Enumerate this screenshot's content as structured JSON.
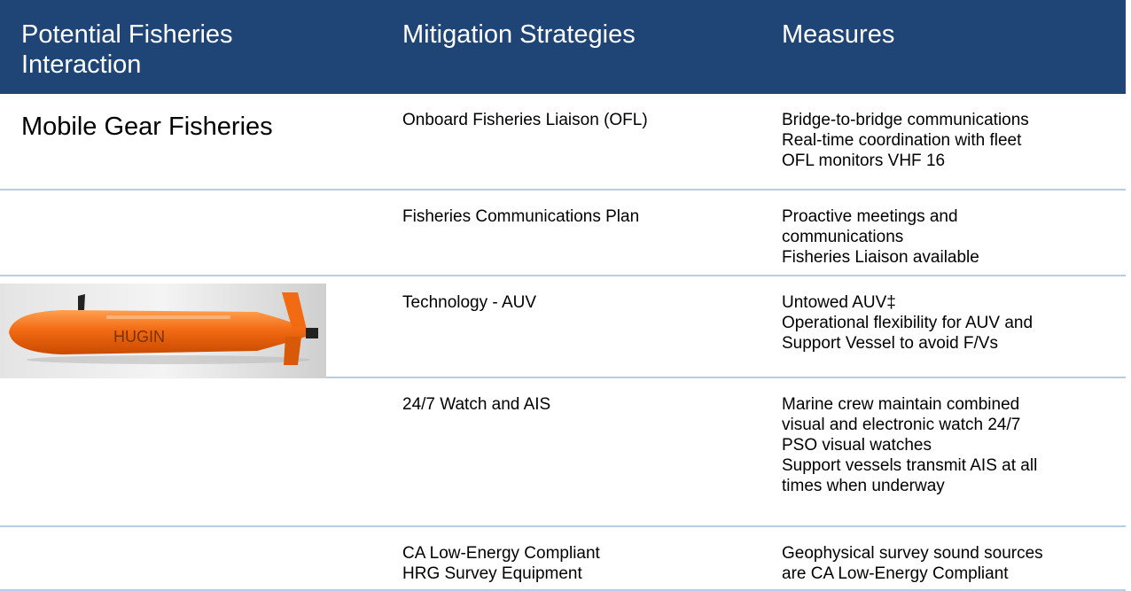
{
  "header": [
    "Potential Fisheries Interaction",
    "Mitigation Strategies",
    "Measures"
  ],
  "rows": [
    {
      "fishery": "Mobile Gear Fisheries",
      "strategy": [
        "Onboard Fisheries Liaison (OFL)"
      ],
      "measures": [
        "Bridge-to-bridge communications",
        "Real-time coordination with fleet",
        "OFL monitors VHF 16"
      ]
    },
    {
      "strategy": [
        "Fisheries Communications Plan"
      ],
      "measures": [
        "Proactive meetings and",
        "communications",
        "Fisheries Liaison available"
      ]
    },
    {
      "image_text": "HUGIN",
      "strategy": [
        "Technology  - AUV"
      ],
      "measures": [
        "Untowed AUV‡",
        "Operational flexibility for AUV and",
        "Support Vessel to avoid F/Vs"
      ]
    },
    {
      "strategy": [
        "24/7 Watch and AIS"
      ],
      "measures": [
        "Marine crew maintain combined",
        "visual and electronic watch 24/7",
        "PSO visual watches",
        "Support vessels transmit AIS at all",
        "times when underway"
      ]
    },
    {
      "strategy": [
        "CA Low-Energy Compliant",
        "HRG Survey Equipment"
      ],
      "measures": [
        "Geophysical survey sound sources",
        "are CA Low-Energy Compliant"
      ]
    }
  ]
}
